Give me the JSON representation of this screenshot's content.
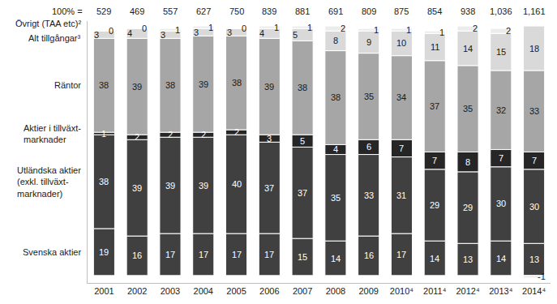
{
  "chart_data": {
    "type": "bar",
    "stacked": true,
    "data_labels": true,
    "tick_labels": "x",
    "grid": false,
    "categories": [
      "2001",
      "2002",
      "2003",
      "2004",
      "2005",
      "2006",
      "2007",
      "2008",
      "2009",
      "2010⁴",
      "2011⁴",
      "2012⁴",
      "2013⁴",
      "2014⁴"
    ],
    "ylim": [
      -3,
      103
    ],
    "yticks": [],
    "totals": {
      "label": "100% =",
      "values": [
        529,
        469,
        557,
        627,
        750,
        839,
        881,
        691,
        809,
        875,
        854,
        938,
        1036,
        1161
      ],
      "value_labels": [
        "529",
        "469",
        "557",
        "627",
        "750",
        "839",
        "881",
        "691",
        "809",
        "875",
        "854",
        "938",
        "1,036",
        "1,161"
      ]
    },
    "series": [
      {
        "name": "Svenska aktier",
        "color": "#404040",
        "values": [
          19,
          16,
          17,
          17,
          17,
          17,
          15,
          14,
          16,
          17,
          14,
          13,
          14,
          13
        ]
      },
      {
        "name": "Utländska aktier\n(exkl. tillväxt-\nmarknader)",
        "color": "#404040",
        "values": [
          38,
          39,
          39,
          39,
          40,
          37,
          37,
          35,
          33,
          31,
          29,
          29,
          30,
          30
        ]
      },
      {
        "name": "Aktier i tillväxt-\nmarknader",
        "color": "#262626",
        "values": [
          1,
          2,
          2,
          2,
          2,
          3,
          5,
          4,
          6,
          7,
          7,
          8,
          7,
          7
        ]
      },
      {
        "name": "Räntor",
        "color": "#a6a6a6",
        "values": [
          38,
          39,
          38,
          39,
          38,
          39,
          38,
          38,
          35,
          34,
          37,
          35,
          32,
          33
        ]
      },
      {
        "name": "Alt tillgångar³",
        "color": "#d9d9d9",
        "values": [
          3,
          4,
          3,
          3,
          3,
          4,
          5,
          8,
          9,
          10,
          11,
          14,
          15,
          18
        ]
      },
      {
        "name": "Övrigt (TAA etc)²",
        "color": "#ececec",
        "values": [
          0,
          0,
          1,
          1,
          0,
          1,
          1,
          2,
          1,
          1,
          1,
          2,
          2,
          -1
        ]
      }
    ]
  }
}
